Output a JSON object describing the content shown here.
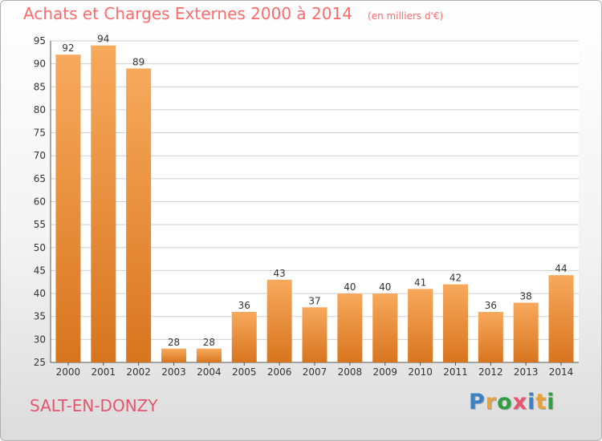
{
  "header": {
    "title": "Achats et Charges Externes 2000 à 2014",
    "unit": "(en milliers d'€)"
  },
  "footer": {
    "town": "SALT-EN-DONZY",
    "logo_text": "Proxiti",
    "logo_colors": [
      "#3b82c4",
      "#e8a13a",
      "#2f9e44",
      "#e5556d",
      "#3b82c4",
      "#e8a13a",
      "#2f9e44"
    ]
  },
  "colors": {
    "bar_light": "#f7a95c",
    "bar_dark": "#d8751f",
    "title": "#ff6b6b",
    "town": "#e5556d",
    "grid": "#cfcfcf"
  },
  "chart_data": {
    "type": "bar",
    "categories": [
      "2000",
      "2001",
      "2002",
      "2003",
      "2004",
      "2005",
      "2006",
      "2007",
      "2008",
      "2009",
      "2010",
      "2011",
      "2012",
      "2013",
      "2014"
    ],
    "values": [
      92,
      94,
      89,
      28,
      28,
      36,
      43,
      37,
      40,
      40,
      41,
      42,
      36,
      38,
      44
    ],
    "yticks": [
      25,
      30,
      35,
      40,
      45,
      50,
      55,
      60,
      65,
      70,
      75,
      80,
      85,
      90,
      95
    ],
    "ylim": [
      25,
      95
    ],
    "grid": true,
    "data_labels": true
  }
}
